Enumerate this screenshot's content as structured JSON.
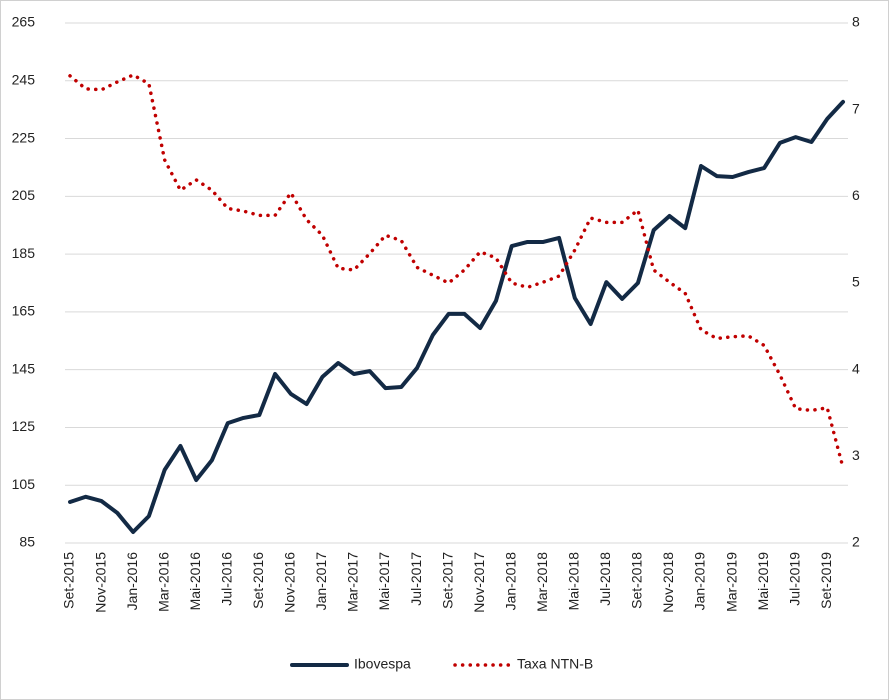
{
  "chart_data": {
    "type": "line",
    "categories": [
      "Set-2015",
      null,
      "Nov-2015",
      null,
      "Jan-2016",
      null,
      "Mar-2016",
      null,
      "Mai-2016",
      null,
      "Jul-2016",
      null,
      "Set-2016",
      null,
      "Nov-2016",
      null,
      "Jan-2017",
      null,
      "Mar-2017",
      null,
      "Mai-2017",
      null,
      "Jul-2017",
      null,
      "Set-2017",
      null,
      "Nov-2017",
      null,
      "Jan-2018",
      null,
      "Mar-2018",
      null,
      "Mai-2018",
      null,
      "Jul-2018",
      null,
      "Set-2018",
      null,
      "Nov-2018",
      null,
      "Jan-2019",
      null,
      "Mar-2019",
      null,
      "Mai-2019",
      null,
      "Jul-2019",
      null,
      "Set-2019",
      null
    ],
    "series": [
      {
        "name": "Ibovespa",
        "color": "#132a45",
        "style": "solid",
        "axis": "y",
        "values": [
          99.2,
          101,
          99.5,
          95.4,
          88.8,
          94.3,
          110.3,
          118.6,
          106.8,
          113.7,
          126.5,
          128.3,
          129.3,
          143.5,
          136.6,
          133.1,
          142.5,
          147.3,
          143.5,
          144.5,
          138.6,
          139,
          145.6,
          157,
          164.3,
          164.3,
          159.4,
          168.8,
          187.8,
          189.2,
          189.2,
          190.6,
          169.8,
          160.8,
          175.3,
          169.5,
          175,
          193.3,
          198.2,
          194,
          215.5,
          212,
          211.7,
          213.4,
          214.8,
          223.5,
          225.5,
          223.8,
          231.8,
          237.7
        ]
      },
      {
        "name": "Taxa NTN-B",
        "color": "#c00000",
        "style": "dotted",
        "axis": "y2",
        "values": [
          7.39,
          7.24,
          7.23,
          7.32,
          7.4,
          7.3,
          6.42,
          6.07,
          6.19,
          6.07,
          5.86,
          5.83,
          5.78,
          5.78,
          6.04,
          5.73,
          5.55,
          5.17,
          5.15,
          5.34,
          5.55,
          5.49,
          5.18,
          5.09,
          5.0,
          5.15,
          5.36,
          5.29,
          5.0,
          4.95,
          5.01,
          5.08,
          5.38,
          5.75,
          5.7,
          5.7,
          5.84,
          5.15,
          5.01,
          4.88,
          4.46,
          4.36,
          4.38,
          4.39,
          4.28,
          3.94,
          3.55,
          3.53,
          3.56,
          2.87
        ]
      }
    ],
    "ylim": [
      85,
      265
    ],
    "yticks": [
      85,
      105,
      125,
      145,
      165,
      185,
      205,
      225,
      245,
      265
    ],
    "y2lim": [
      2,
      8
    ],
    "y2ticks": [
      2,
      3,
      4,
      5,
      6,
      7,
      8
    ],
    "grid": true,
    "legend": "bottom"
  }
}
